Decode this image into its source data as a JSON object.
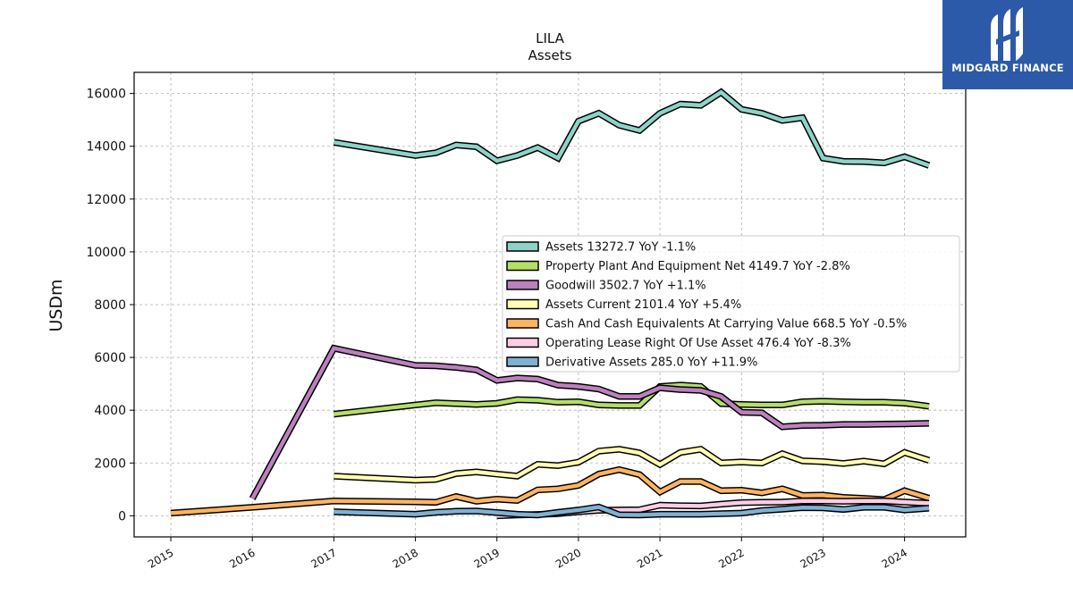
{
  "brand": {
    "name": "MIDGARD FINANCE",
    "color": "#2c5aa8"
  },
  "chart_data": {
    "type": "line",
    "title": "LILA",
    "subtitle": "Assets",
    "ylabel": "USDm",
    "xlabel": "",
    "xlim": [
      2014.55,
      2024.75
    ],
    "ylim": [
      -800,
      16800
    ],
    "xticks": [
      2015,
      2016,
      2017,
      2018,
      2019,
      2020,
      2021,
      2022,
      2023,
      2024
    ],
    "xtick_labels": [
      "2015",
      "2016",
      "2017",
      "2018",
      "2019",
      "2020",
      "2021",
      "2022",
      "2023",
      "2024"
    ],
    "yticks": [
      0,
      2000,
      4000,
      6000,
      8000,
      10000,
      12000,
      14000,
      16000
    ],
    "ytick_labels": [
      "0",
      "2000",
      "4000",
      "6000",
      "8000",
      "10000",
      "12000",
      "14000",
      "16000"
    ],
    "grid": true,
    "legend_position": "center-right",
    "series": [
      {
        "name": "Assets  13272.7 YoY -1.1%",
        "color": "#8dd3c7",
        "x": [
          2017.0,
          2018.0,
          2018.25,
          2018.5,
          2018.75,
          2019.0,
          2019.25,
          2019.5,
          2019.75,
          2020.0,
          2020.25,
          2020.5,
          2020.75,
          2021.0,
          2021.25,
          2021.5,
          2021.75,
          2022.0,
          2022.25,
          2022.5,
          2022.75,
          2023.0,
          2023.25,
          2023.5,
          2023.75,
          2024.0,
          2024.3
        ],
        "y": [
          14150,
          13650,
          13750,
          14050,
          13980,
          13450,
          13650,
          13950,
          13550,
          14950,
          15250,
          14800,
          14600,
          15250,
          15600,
          15550,
          16050,
          15400,
          15250,
          14980,
          15080,
          13550,
          13430,
          13420,
          13370,
          13600,
          13273
        ]
      },
      {
        "name": "Property Plant And Equipment Net  4149.7 YoY -2.8%",
        "color": "#b3de69",
        "x": [
          2017.0,
          2018.0,
          2018.25,
          2018.5,
          2018.75,
          2019.0,
          2019.25,
          2019.5,
          2019.75,
          2020.0,
          2020.25,
          2020.5,
          2020.75,
          2021.0,
          2021.25,
          2021.5,
          2021.75,
          2022.0,
          2022.25,
          2022.5,
          2022.75,
          2023.0,
          2023.25,
          2023.5,
          2023.75,
          2024.0,
          2024.3
        ],
        "y": [
          3850,
          4200,
          4280,
          4250,
          4220,
          4260,
          4400,
          4380,
          4300,
          4320,
          4200,
          4180,
          4180,
          4900,
          4950,
          4900,
          4250,
          4220,
          4200,
          4200,
          4320,
          4340,
          4320,
          4300,
          4300,
          4270,
          4150
        ]
      },
      {
        "name": "Goodwill  3502.7 YoY +1.1%",
        "color": "#bc80bd",
        "x": [
          2016.0,
          2017.0,
          2018.0,
          2018.25,
          2018.5,
          2018.75,
          2019.0,
          2019.25,
          2019.5,
          2019.75,
          2020.0,
          2020.25,
          2020.5,
          2020.75,
          2021.0,
          2021.25,
          2021.5,
          2021.75,
          2022.0,
          2022.25,
          2022.5,
          2022.75,
          2023.0,
          2023.25,
          2023.5,
          2023.75,
          2024.0,
          2024.3
        ],
        "y": [
          650,
          6350,
          5700,
          5680,
          5620,
          5530,
          5130,
          5220,
          5180,
          4950,
          4900,
          4800,
          4520,
          4520,
          4850,
          4780,
          4750,
          4520,
          3920,
          3900,
          3370,
          3420,
          3430,
          3460,
          3460,
          3470,
          3480,
          3503
        ]
      },
      {
        "name": "Assets Current  2101.4 YoY +5.4%",
        "color": "#ffffb3",
        "x": [
          2017.0,
          2018.0,
          2018.25,
          2018.5,
          2018.75,
          2019.0,
          2019.25,
          2019.5,
          2019.75,
          2020.0,
          2020.25,
          2020.5,
          2020.75,
          2021.0,
          2021.25,
          2021.5,
          2021.75,
          2022.0,
          2022.25,
          2022.5,
          2022.75,
          2023.0,
          2023.25,
          2023.5,
          2023.75,
          2024.0,
          2024.3
        ],
        "y": [
          1500,
          1350,
          1380,
          1600,
          1660,
          1580,
          1500,
          1950,
          1900,
          2030,
          2450,
          2520,
          2380,
          1940,
          2400,
          2520,
          2000,
          2040,
          2000,
          2350,
          2080,
          2050,
          1980,
          2070,
          1970,
          2400,
          2101
        ]
      },
      {
        "name": "Cash And Cash Equivalents At Carrying Value  668.5 YoY -0.5%",
        "color": "#fdb462",
        "x": [
          2015.0,
          2016.0,
          2017.0,
          2018.0,
          2018.25,
          2018.5,
          2018.75,
          2019.0,
          2019.25,
          2019.5,
          2019.75,
          2020.0,
          2020.25,
          2020.5,
          2020.75,
          2021.0,
          2021.25,
          2021.5,
          2021.75,
          2022.0,
          2022.25,
          2022.5,
          2022.75,
          2023.0,
          2023.25,
          2023.5,
          2023.75,
          2024.0,
          2024.3
        ],
        "y": [
          100,
          320,
          560,
          530,
          510,
          730,
          550,
          630,
          580,
          980,
          1020,
          1150,
          1580,
          1750,
          1560,
          900,
          1300,
          1300,
          950,
          970,
          870,
          1020,
          770,
          780,
          700,
          660,
          610,
          950,
          669
        ]
      },
      {
        "name": "Operating Lease Right Of Use Asset  476.4 YoY -8.3%",
        "color": "#fccde5",
        "x": [
          2019.0,
          2019.25,
          2019.5,
          2019.75,
          2020.0,
          2020.25,
          2020.5,
          2020.75,
          2021.0,
          2021.25,
          2021.5,
          2021.75,
          2022.0,
          2022.25,
          2022.5,
          2022.75,
          2023.0,
          2023.25,
          2023.5,
          2023.75,
          2024.0,
          2024.3
        ],
        "y": [
          0,
          30,
          50,
          80,
          150,
          210,
          220,
          230,
          400,
          380,
          370,
          440,
          500,
          510,
          520,
          560,
          560,
          550,
          560,
          560,
          520,
          476
        ]
      },
      {
        "name": "Derivative Assets  285.0 YoY +11.9%",
        "color": "#80b1d3",
        "x": [
          2017.0,
          2018.0,
          2018.25,
          2018.5,
          2018.75,
          2019.0,
          2019.25,
          2019.5,
          2019.75,
          2020.0,
          2020.25,
          2020.5,
          2020.75,
          2021.0,
          2021.25,
          2021.5,
          2021.75,
          2022.0,
          2022.25,
          2022.5,
          2022.75,
          2023.0,
          2023.25,
          2023.5,
          2023.75,
          2024.0,
          2024.3
        ],
        "y": [
          150,
          60,
          130,
          170,
          180,
          120,
          60,
          30,
          130,
          220,
          330,
          40,
          30,
          60,
          60,
          60,
          80,
          100,
          200,
          250,
          310,
          300,
          240,
          320,
          320,
          220,
          285
        ]
      }
    ]
  }
}
